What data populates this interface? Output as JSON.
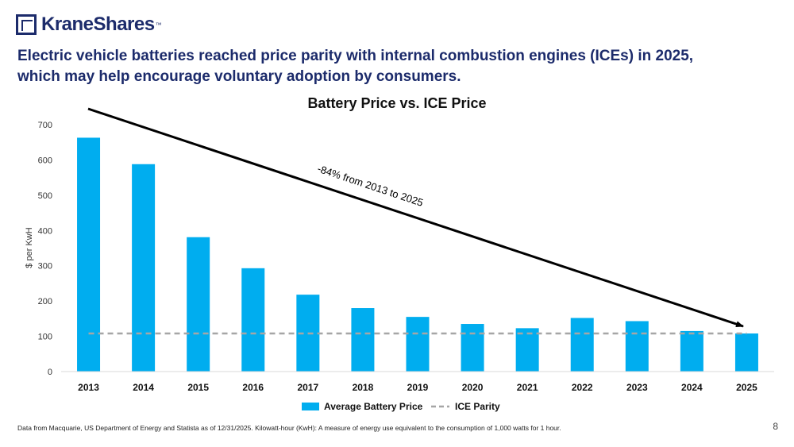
{
  "logo": {
    "name": "KraneShares",
    "tm": "™"
  },
  "headline": "Electric vehicle batteries reached price parity with internal combustion engines (ICEs) in 2025, which may help encourage voluntary adoption by consumers.",
  "footnote": "Data from Macquarie, US Department of Energy and Statista as of 12/31/2025. Kilowatt-hour (KwH): A measure of energy use equivalent to the consumption of 1,000 watts for 1 hour.",
  "page_number": "8",
  "colors": {
    "bar": "#00adef",
    "parity": "#a6a6a6",
    "brand": "#1c2b6b"
  },
  "chart_data": {
    "type": "bar",
    "title": "Battery Price vs. ICE Price",
    "xlabel": "",
    "ylabel": "$ per KwH",
    "ylim": [
      0,
      700
    ],
    "yticks": [
      0,
      100,
      200,
      300,
      400,
      500,
      600,
      700
    ],
    "categories": [
      "2013",
      "2014",
      "2015",
      "2016",
      "2017",
      "2018",
      "2019",
      "2020",
      "2021",
      "2022",
      "2023",
      "2024",
      "2025"
    ],
    "series": [
      {
        "name": "Average Battery Price",
        "kind": "bar",
        "values": [
          663,
          588,
          381,
          293,
          218,
          180,
          155,
          135,
          123,
          152,
          143,
          115,
          108
        ]
      },
      {
        "name": "ICE Parity",
        "kind": "dashed-line",
        "values": [
          108,
          108,
          108,
          108,
          108,
          108,
          108,
          108,
          108,
          108,
          108,
          108,
          108
        ]
      }
    ],
    "annotation": {
      "text": "-84% from 2013 to 2025"
    },
    "legend": "bottom"
  }
}
